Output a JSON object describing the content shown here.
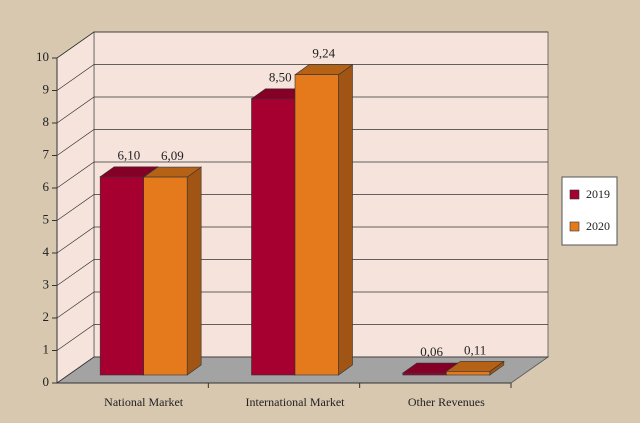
{
  "chart_data": {
    "type": "bar3d",
    "categories": [
      "National Market",
      "International Market",
      "Other Revenues"
    ],
    "series": [
      {
        "name": "2019",
        "color": "#a50030",
        "values": [
          6.1,
          8.5,
          0.06
        ],
        "value_labels": [
          "6,10",
          "8,50",
          "0,06"
        ]
      },
      {
        "name": "2020",
        "color": "#e47a1c",
        "values": [
          6.09,
          9.24,
          0.11
        ],
        "value_labels": [
          "6,09",
          "9,24",
          "0,11"
        ]
      }
    ],
    "ylim": [
      0,
      10
    ],
    "yticks": [
      0,
      1,
      2,
      3,
      4,
      5,
      6,
      7,
      8,
      9,
      10
    ],
    "grid": true,
    "legend": "right"
  }
}
